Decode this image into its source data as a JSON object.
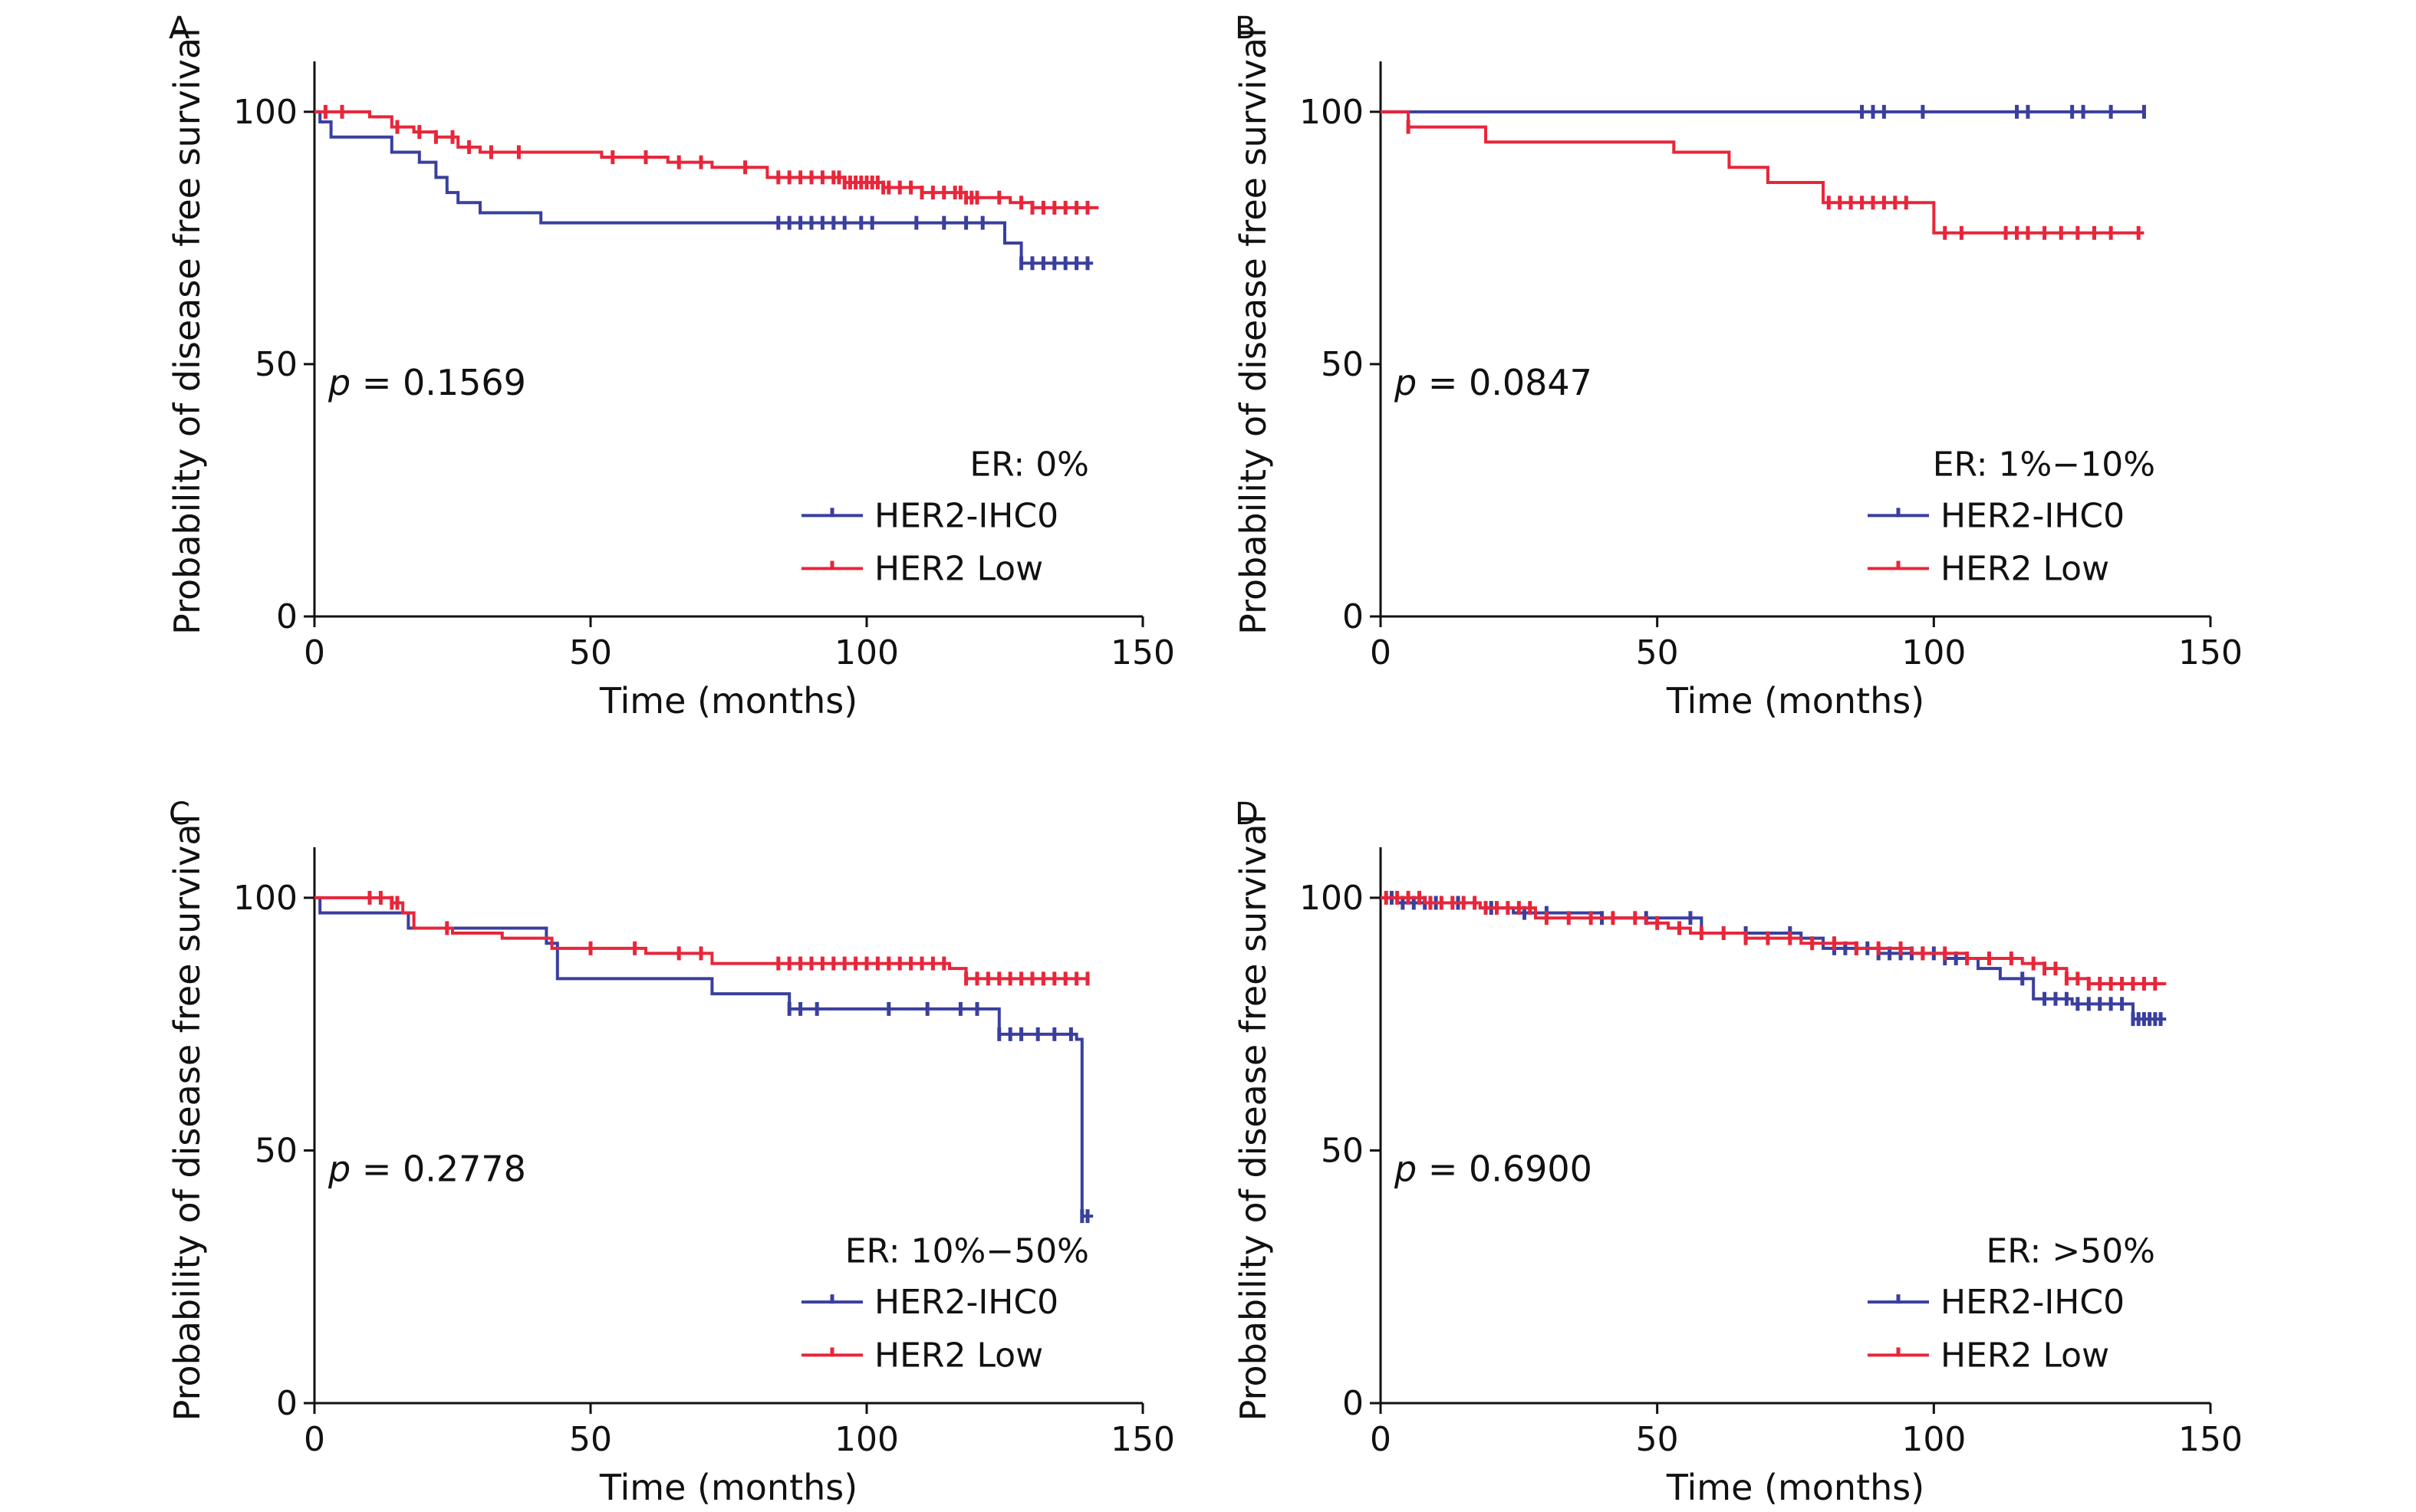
{
  "chart_data": [
    {
      "type": "line",
      "panel_label": "A",
      "subgroup": "ER: 0%",
      "p_label": "p",
      "p_value": " = 0.1569",
      "xlabel": "Time (months)",
      "ylabel": "Probability of disease free survival",
      "xlim": [
        0,
        150
      ],
      "ylim": [
        0,
        110
      ],
      "xticks": [
        "0",
        "50",
        "100",
        "150"
      ],
      "yticks": [
        "0",
        "50",
        "100"
      ],
      "legend_position": "bottom-right",
      "series": [
        {
          "name": "HER2-IHC0",
          "color": "#3a3f9e",
          "steps": [
            [
              0,
              100
            ],
            [
              1,
              98
            ],
            [
              3,
              95
            ],
            [
              14,
              92
            ],
            [
              19,
              90
            ],
            [
              22,
              87
            ],
            [
              24,
              84
            ],
            [
              26,
              82
            ],
            [
              30,
              80
            ],
            [
              41,
              78
            ],
            [
              123,
              78
            ],
            [
              125,
              74
            ],
            [
              128,
              70
            ],
            [
              141,
              70
            ]
          ],
          "censors": [
            84,
            86,
            88,
            90,
            92,
            94,
            96,
            99,
            101,
            109,
            114,
            118,
            121,
            128,
            130,
            132,
            134,
            136,
            138,
            140
          ]
        },
        {
          "name": "HER2 Low",
          "color": "#e8263a",
          "steps": [
            [
              0,
              100
            ],
            [
              10,
              99
            ],
            [
              14,
              97
            ],
            [
              18,
              96
            ],
            [
              22,
              95
            ],
            [
              26,
              93
            ],
            [
              30,
              92
            ],
            [
              52,
              91
            ],
            [
              64,
              90
            ],
            [
              72,
              89
            ],
            [
              82,
              87
            ],
            [
              96,
              86
            ],
            [
              103,
              85
            ],
            [
              110,
              84
            ],
            [
              118,
              83
            ],
            [
              126,
              82
            ],
            [
              130,
              81
            ],
            [
              142,
              81
            ]
          ],
          "censors": [
            2,
            5,
            15,
            19,
            22,
            25,
            28,
            32,
            37,
            54,
            60,
            66,
            70,
            78,
            84,
            86,
            88,
            90,
            92,
            94,
            95,
            96,
            97,
            98,
            99,
            100,
            101,
            102,
            103,
            104,
            106,
            108,
            110,
            112,
            114,
            116,
            117,
            118,
            119,
            120,
            124,
            128,
            130,
            132,
            134,
            136,
            138,
            140
          ]
        }
      ]
    },
    {
      "type": "line",
      "panel_label": "B",
      "subgroup": "ER: 1%−10%",
      "p_label": "p",
      "p_value": " = 0.0847",
      "xlabel": "Time (months)",
      "ylabel": "Probability of disease free survival",
      "xlim": [
        0,
        150
      ],
      "ylim": [
        0,
        110
      ],
      "xticks": [
        "0",
        "50",
        "100",
        "150"
      ],
      "yticks": [
        "0",
        "50",
        "100"
      ],
      "legend_position": "bottom-right",
      "series": [
        {
          "name": "HER2-IHC0",
          "color": "#3a3f9e",
          "steps": [
            [
              0,
              100
            ],
            [
              138,
              100
            ]
          ],
          "censors": [
            87,
            89,
            91,
            98,
            115,
            117,
            125,
            127,
            132,
            138
          ]
        },
        {
          "name": "HER2 Low",
          "color": "#e8263a",
          "steps": [
            [
              0,
              100
            ],
            [
              5,
              97
            ],
            [
              19,
              94
            ],
            [
              53,
              92
            ],
            [
              63,
              89
            ],
            [
              70,
              86
            ],
            [
              80,
              82
            ],
            [
              100,
              76
            ],
            [
              138,
              76
            ]
          ],
          "censors": [
            5,
            81,
            83,
            85,
            87,
            89,
            91,
            93,
            95,
            102,
            105,
            113,
            115,
            117,
            120,
            123,
            126,
            129,
            132,
            137
          ]
        }
      ]
    },
    {
      "type": "line",
      "panel_label": "C",
      "subgroup": "ER: 10%−50%",
      "p_label": "p",
      "p_value": " = 0.2778",
      "xlabel": "Time (months)",
      "ylabel": "Probability of disease free survival",
      "xlim": [
        0,
        150
      ],
      "ylim": [
        0,
        110
      ],
      "xticks": [
        "0",
        "50",
        "100",
        "150"
      ],
      "yticks": [
        "0",
        "50",
        "100"
      ],
      "legend_position": "bottom-right",
      "series": [
        {
          "name": "HER2-IHC0",
          "color": "#3a3f9e",
          "steps": [
            [
              0,
              100
            ],
            [
              1,
              97
            ],
            [
              17,
              94
            ],
            [
              42,
              91
            ],
            [
              44,
              84
            ],
            [
              72,
              81
            ],
            [
              86,
              78
            ],
            [
              124,
              73
            ],
            [
              138,
              72
            ],
            [
              139,
              37
            ],
            [
              141,
              37
            ]
          ],
          "censors": [
            86,
            88,
            91,
            104,
            111,
            117,
            120,
            124,
            126,
            128,
            131,
            134,
            137,
            139,
            140
          ]
        },
        {
          "name": "HER2 Low",
          "color": "#e8263a",
          "steps": [
            [
              0,
              100
            ],
            [
              14,
              99
            ],
            [
              16,
              97
            ],
            [
              18,
              94
            ],
            [
              25,
              93
            ],
            [
              34,
              92
            ],
            [
              43,
              90
            ],
            [
              60,
              89
            ],
            [
              72,
              87
            ],
            [
              115,
              86
            ],
            [
              118,
              84
            ],
            [
              140,
              84
            ]
          ],
          "censors": [
            10,
            12,
            14,
            15,
            24,
            50,
            58,
            66,
            70,
            84,
            86,
            88,
            90,
            92,
            94,
            96,
            98,
            100,
            102,
            104,
            106,
            108,
            110,
            112,
            114,
            118,
            120,
            122,
            124,
            126,
            128,
            130,
            132,
            134,
            136,
            138,
            140
          ]
        }
      ]
    },
    {
      "type": "line",
      "panel_label": "D",
      "subgroup": "ER: >50%",
      "p_label": "p",
      "p_value": " = 0.6900",
      "xlabel": "Time (months)",
      "ylabel": "Probability of disease free survival",
      "xlim": [
        0,
        150
      ],
      "ylim": [
        0,
        110
      ],
      "xticks": [
        "0",
        "50",
        "100",
        "150"
      ],
      "yticks": [
        "0",
        "50",
        "100"
      ],
      "legend_position": "bottom-right",
      "series": [
        {
          "name": "HER2-IHC0",
          "color": "#3a3f9e",
          "steps": [
            [
              0,
              100
            ],
            [
              3,
              99
            ],
            [
              18,
              98
            ],
            [
              24,
              97
            ],
            [
              40,
              96
            ],
            [
              58,
              93
            ],
            [
              76,
              92
            ],
            [
              80,
              90
            ],
            [
              90,
              89
            ],
            [
              102,
              88
            ],
            [
              108,
              86
            ],
            [
              112,
              84
            ],
            [
              118,
              80
            ],
            [
              125,
              79
            ],
            [
              132,
              79
            ],
            [
              136,
              76
            ],
            [
              142,
              76
            ]
          ],
          "censors": [
            2,
            4,
            6,
            8,
            10,
            14,
            20,
            26,
            30,
            40,
            48,
            56,
            66,
            74,
            82,
            84,
            86,
            88,
            90,
            92,
            94,
            96,
            98,
            100,
            102,
            104,
            116,
            120,
            122,
            124,
            126,
            128,
            130,
            132,
            134,
            136,
            137,
            138,
            139,
            140,
            141
          ]
        },
        {
          "name": "HER2 Low",
          "color": "#e8263a",
          "steps": [
            [
              0,
              100
            ],
            [
              8,
              99
            ],
            [
              18,
              98
            ],
            [
              28,
              96
            ],
            [
              48,
              95
            ],
            [
              52,
              94
            ],
            [
              56,
              93
            ],
            [
              66,
              92
            ],
            [
              76,
              91
            ],
            [
              86,
              90
            ],
            [
              96,
              89
            ],
            [
              106,
              88
            ],
            [
              116,
              87
            ],
            [
              120,
              86
            ],
            [
              124,
              84
            ],
            [
              128,
              83
            ],
            [
              142,
              83
            ]
          ],
          "censors": [
            1,
            3,
            5,
            7,
            9,
            11,
            13,
            15,
            17,
            19,
            21,
            23,
            25,
            27,
            30,
            34,
            38,
            42,
            46,
            50,
            54,
            58,
            62,
            66,
            70,
            74,
            78,
            82,
            86,
            90,
            94,
            98,
            102,
            106,
            110,
            114,
            118,
            120,
            122,
            124,
            126,
            128,
            130,
            132,
            134,
            136,
            138,
            140
          ]
        }
      ]
    }
  ]
}
